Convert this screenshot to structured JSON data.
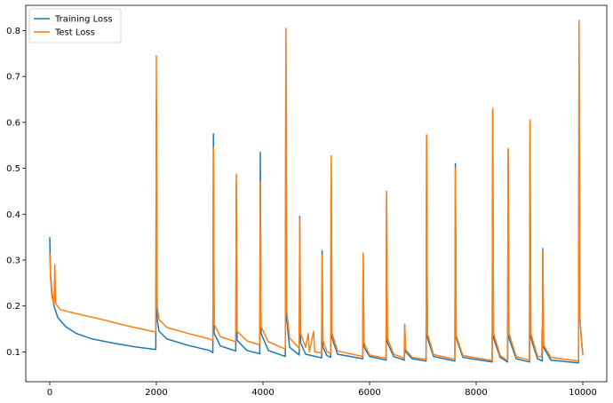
{
  "chart_data": {
    "type": "line",
    "title": "",
    "xlabel": "",
    "ylabel": "",
    "xlim": [
      -450,
      10450
    ],
    "ylim": [
      0.035,
      0.855
    ],
    "grid": false,
    "legend_position": "top-left",
    "x_ticks": [
      0,
      2000,
      4000,
      6000,
      8000,
      10000
    ],
    "x_tick_labels": [
      "0",
      "2000",
      "4000",
      "6000",
      "8000",
      "10000"
    ],
    "y_ticks": [
      0.1,
      0.2,
      0.3,
      0.4,
      0.5,
      0.6,
      0.7,
      0.8
    ],
    "y_tick_labels": [
      "0.1",
      "0.2",
      "0.3",
      "0.4",
      "0.5",
      "0.6",
      "0.7",
      "0.8"
    ],
    "series": [
      {
        "name": "Training Loss",
        "color": "#1f77b4",
        "points": [
          [
            0,
            0.35
          ],
          [
            15,
            0.27
          ],
          [
            40,
            0.23
          ],
          [
            80,
            0.2
          ],
          [
            150,
            0.175
          ],
          [
            300,
            0.155
          ],
          [
            500,
            0.14
          ],
          [
            800,
            0.128
          ],
          [
            1200,
            0.119
          ],
          [
            1600,
            0.111
          ],
          [
            1990,
            0.105
          ],
          [
            2000,
            0.65
          ],
          [
            2015,
            0.17
          ],
          [
            2050,
            0.145
          ],
          [
            2200,
            0.128
          ],
          [
            2600,
            0.114
          ],
          [
            3000,
            0.103
          ],
          [
            3060,
            0.098
          ],
          [
            3070,
            0.575
          ],
          [
            3085,
            0.14
          ],
          [
            3200,
            0.113
          ],
          [
            3490,
            0.102
          ],
          [
            3500,
            0.47
          ],
          [
            3515,
            0.125
          ],
          [
            3700,
            0.103
          ],
          [
            3940,
            0.096
          ],
          [
            3950,
            0.535
          ],
          [
            3965,
            0.14
          ],
          [
            4100,
            0.103
          ],
          [
            4420,
            0.09
          ],
          [
            4430,
            0.79
          ],
          [
            4445,
            0.17
          ],
          [
            4500,
            0.11
          ],
          [
            4680,
            0.093
          ],
          [
            4690,
            0.395
          ],
          [
            4705,
            0.12
          ],
          [
            4800,
            0.095
          ],
          [
            5100,
            0.087
          ],
          [
            5110,
            0.32
          ],
          [
            5125,
            0.11
          ],
          [
            5200,
            0.092
          ],
          [
            5270,
            0.088
          ],
          [
            5280,
            0.52
          ],
          [
            5295,
            0.13
          ],
          [
            5400,
            0.095
          ],
          [
            5870,
            0.085
          ],
          [
            5880,
            0.31
          ],
          [
            5895,
            0.11
          ],
          [
            6000,
            0.09
          ],
          [
            6310,
            0.082
          ],
          [
            6320,
            0.445
          ],
          [
            6335,
            0.12
          ],
          [
            6450,
            0.09
          ],
          [
            6650,
            0.082
          ],
          [
            6660,
            0.16
          ],
          [
            6675,
            0.1
          ],
          [
            6800,
            0.085
          ],
          [
            7060,
            0.08
          ],
          [
            7070,
            0.57
          ],
          [
            7085,
            0.13
          ],
          [
            7200,
            0.09
          ],
          [
            7600,
            0.08
          ],
          [
            7610,
            0.51
          ],
          [
            7625,
            0.13
          ],
          [
            7750,
            0.088
          ],
          [
            8300,
            0.078
          ],
          [
            8310,
            0.625
          ],
          [
            8325,
            0.13
          ],
          [
            8450,
            0.088
          ],
          [
            8590,
            0.078
          ],
          [
            8600,
            0.54
          ],
          [
            8615,
            0.13
          ],
          [
            8750,
            0.085
          ],
          [
            9000,
            0.078
          ],
          [
            9010,
            0.6
          ],
          [
            9025,
            0.13
          ],
          [
            9150,
            0.085
          ],
          [
            9240,
            0.08
          ],
          [
            9250,
            0.325
          ],
          [
            9265,
            0.11
          ],
          [
            9400,
            0.082
          ],
          [
            9920,
            0.076
          ],
          [
            9930,
            0.81
          ],
          [
            9945,
            0.17
          ],
          [
            9980,
            0.12
          ],
          [
            10000,
            0.095
          ]
        ]
      },
      {
        "name": "Test Loss",
        "color": "#ff7f0e",
        "points": [
          [
            0,
            0.315
          ],
          [
            15,
            0.26
          ],
          [
            40,
            0.22
          ],
          [
            80,
            0.205
          ],
          [
            95,
            0.29
          ],
          [
            110,
            0.205
          ],
          [
            200,
            0.192
          ],
          [
            400,
            0.186
          ],
          [
            700,
            0.178
          ],
          [
            1000,
            0.17
          ],
          [
            1400,
            0.158
          ],
          [
            1800,
            0.148
          ],
          [
            1990,
            0.143
          ],
          [
            2000,
            0.745
          ],
          [
            2015,
            0.2
          ],
          [
            2050,
            0.17
          ],
          [
            2200,
            0.153
          ],
          [
            2600,
            0.14
          ],
          [
            3000,
            0.128
          ],
          [
            3060,
            0.124
          ],
          [
            3070,
            0.545
          ],
          [
            3085,
            0.16
          ],
          [
            3200,
            0.133
          ],
          [
            3490,
            0.122
          ],
          [
            3500,
            0.487
          ],
          [
            3515,
            0.145
          ],
          [
            3700,
            0.124
          ],
          [
            3940,
            0.115
          ],
          [
            3950,
            0.47
          ],
          [
            3965,
            0.155
          ],
          [
            4100,
            0.122
          ],
          [
            4420,
            0.106
          ],
          [
            4430,
            0.805
          ],
          [
            4445,
            0.19
          ],
          [
            4500,
            0.13
          ],
          [
            4680,
            0.108
          ],
          [
            4690,
            0.39
          ],
          [
            4705,
            0.14
          ],
          [
            4800,
            0.11
          ],
          [
            4850,
            0.14
          ],
          [
            4870,
            0.1
          ],
          [
            4950,
            0.145
          ],
          [
            4970,
            0.1
          ],
          [
            5100,
            0.098
          ],
          [
            5110,
            0.31
          ],
          [
            5125,
            0.125
          ],
          [
            5200,
            0.1
          ],
          [
            5270,
            0.097
          ],
          [
            5280,
            0.527
          ],
          [
            5295,
            0.14
          ],
          [
            5400,
            0.102
          ],
          [
            5870,
            0.09
          ],
          [
            5880,
            0.315
          ],
          [
            5895,
            0.12
          ],
          [
            6000,
            0.093
          ],
          [
            6310,
            0.086
          ],
          [
            6320,
            0.45
          ],
          [
            6335,
            0.13
          ],
          [
            6450,
            0.095
          ],
          [
            6650,
            0.086
          ],
          [
            6660,
            0.16
          ],
          [
            6675,
            0.105
          ],
          [
            6800,
            0.088
          ],
          [
            7060,
            0.084
          ],
          [
            7070,
            0.573
          ],
          [
            7085,
            0.14
          ],
          [
            7200,
            0.094
          ],
          [
            7600,
            0.084
          ],
          [
            7610,
            0.5
          ],
          [
            7625,
            0.135
          ],
          [
            7750,
            0.092
          ],
          [
            8300,
            0.081
          ],
          [
            8310,
            0.63
          ],
          [
            8325,
            0.14
          ],
          [
            8450,
            0.092
          ],
          [
            8590,
            0.081
          ],
          [
            8600,
            0.543
          ],
          [
            8615,
            0.14
          ],
          [
            8750,
            0.09
          ],
          [
            9000,
            0.082
          ],
          [
            9010,
            0.605
          ],
          [
            9025,
            0.14
          ],
          [
            9150,
            0.09
          ],
          [
            9230,
            0.09
          ],
          [
            9235,
            0.15
          ],
          [
            9245,
            0.1
          ],
          [
            9250,
            0.32
          ],
          [
            9265,
            0.115
          ],
          [
            9400,
            0.088
          ],
          [
            9920,
            0.08
          ],
          [
            9930,
            0.822
          ],
          [
            9945,
            0.175
          ],
          [
            9980,
            0.12
          ],
          [
            10000,
            0.092
          ]
        ]
      }
    ]
  }
}
